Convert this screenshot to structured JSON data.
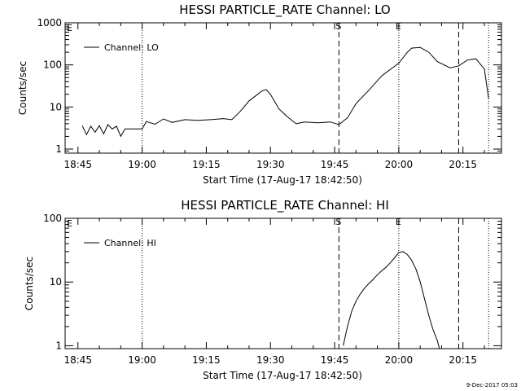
{
  "stamp": "9-Dec-2017 05:03",
  "chart_data": [
    {
      "type": "line",
      "title": "HESSI PARTICLE_RATE Channel: LO",
      "xlabel": "Start Time (17-Aug-17 18:42:50)",
      "ylabel": "Counts/sec",
      "y_scale": "log",
      "xlim": [
        "18:42",
        "20:24"
      ],
      "ylim": [
        0.8,
        1000
      ],
      "x_ticks": [
        "18:45",
        "19:00",
        "19:15",
        "19:30",
        "19:45",
        "20:00",
        "20:15"
      ],
      "y_ticks": [
        "1",
        "10",
        "100",
        "1000"
      ],
      "legend": {
        "position": "top-left",
        "entries": [
          "Channel: LO"
        ]
      },
      "markers": [
        {
          "time": "19:00",
          "style": "dotted",
          "label": ""
        },
        {
          "time": "19:46",
          "style": "dashed",
          "label": "S"
        },
        {
          "time": "20:00",
          "style": "dotted",
          "label": "E"
        },
        {
          "time": "20:14",
          "style": "dashed",
          "label": ""
        },
        {
          "time": "20:21",
          "style": "dotted",
          "label": ""
        }
      ],
      "corner_label": "E",
      "series": [
        {
          "name": "Channel: LO",
          "x": [
            "18:46",
            "18:47",
            "18:48",
            "18:49",
            "18:50",
            "18:51",
            "18:52",
            "18:53",
            "18:54",
            "18:55",
            "18:56",
            "19:00",
            "19:01",
            "19:03",
            "19:05",
            "19:07",
            "19:10",
            "19:13",
            "19:16",
            "19:19",
            "19:21",
            "19:23",
            "19:25",
            "19:27",
            "19:28",
            "19:29",
            "19:30",
            "19:32",
            "19:34",
            "19:36",
            "19:38",
            "19:41",
            "19:44",
            "19:46",
            "19:48",
            "19:50",
            "19:53",
            "19:56",
            "20:00",
            "20:02",
            "20:03",
            "20:05",
            "20:07",
            "20:09",
            "20:12",
            "20:14",
            "20:16",
            "20:18",
            "20:20",
            "20:21"
          ],
          "values": [
            3.6,
            2.2,
            3.5,
            2.5,
            3.6,
            2.3,
            3.8,
            3,
            3.5,
            2,
            3,
            3,
            4.5,
            3.9,
            5.2,
            4.3,
            5,
            4.8,
            5,
            5.3,
            5,
            8,
            14,
            20,
            24,
            26,
            20,
            9,
            5.8,
            4,
            4.4,
            4.2,
            4.4,
            3.8,
            5.5,
            12,
            25,
            55,
            110,
            200,
            250,
            260,
            200,
            120,
            85,
            95,
            130,
            140,
            80,
            16
          ]
        }
      ]
    },
    {
      "type": "line",
      "title": "HESSI PARTICLE_RATE Channel: HI",
      "xlabel": "Start Time (17-Aug-17 18:42:50)",
      "ylabel": "Counts/sec",
      "y_scale": "log",
      "xlim": [
        "18:42",
        "20:24"
      ],
      "ylim": [
        0.9,
        100
      ],
      "x_ticks": [
        "18:45",
        "19:00",
        "19:15",
        "19:30",
        "19:45",
        "20:00",
        "20:15"
      ],
      "y_ticks": [
        "1",
        "10",
        "100"
      ],
      "legend": {
        "position": "top-left",
        "entries": [
          "Channel: HI"
        ]
      },
      "markers": [
        {
          "time": "19:00",
          "style": "dotted",
          "label": ""
        },
        {
          "time": "19:46",
          "style": "dashed",
          "label": "S"
        },
        {
          "time": "20:00",
          "style": "dotted",
          "label": "E"
        },
        {
          "time": "20:14",
          "style": "dashed",
          "label": ""
        },
        {
          "time": "20:21",
          "style": "dotted",
          "label": ""
        }
      ],
      "corner_label": "E",
      "series": [
        {
          "name": "Channel: HI",
          "x": [
            "19:47",
            "19:48",
            "19:49",
            "19:50",
            "19:51",
            "19:52",
            "19:53",
            "19:54",
            "19:55",
            "19:56",
            "19:57",
            "19:58",
            "19:59",
            "20:00",
            "20:01",
            "20:02",
            "20:03",
            "20:04",
            "20:05",
            "20:06",
            "20:07",
            "20:08",
            "20:09",
            "20:09:30"
          ],
          "values": [
            1,
            2,
            3.5,
            5,
            6.5,
            8,
            9.5,
            11,
            13,
            15,
            17,
            20,
            24,
            29,
            30,
            27,
            22,
            16,
            10,
            5.5,
            3,
            1.8,
            1.2,
            0.9
          ]
        }
      ]
    }
  ]
}
